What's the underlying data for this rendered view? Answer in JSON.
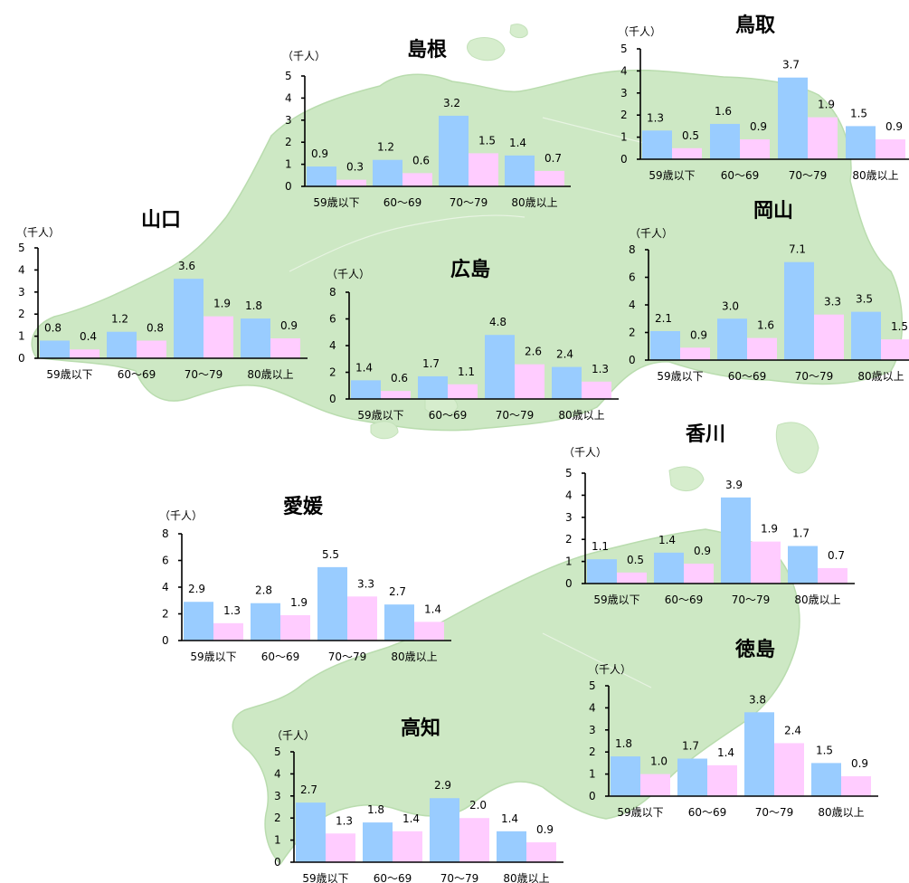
{
  "colors": {
    "series1": "#99ccff",
    "series2": "#ffccff",
    "land": "#cde8c4"
  },
  "chart_data": [
    {
      "type": "bar",
      "title": "鳥取",
      "unit": "（千人）",
      "categories": [
        "59歳以下",
        "60～69",
        "70～79",
        "80歳以上"
      ],
      "series": [
        {
          "values": [
            1.3,
            1.6,
            3.7,
            1.5
          ]
        },
        {
          "values": [
            0.5,
            0.9,
            1.9,
            0.9
          ]
        }
      ],
      "ylim": [
        0,
        5
      ],
      "yticks": [
        "0",
        "1",
        "2",
        "3",
        "4",
        "5"
      ]
    },
    {
      "type": "bar",
      "title": "島根",
      "unit": "（千人）",
      "categories": [
        "59歳以下",
        "60～69",
        "70～79",
        "80歳以上"
      ],
      "series": [
        {
          "values": [
            0.9,
            1.2,
            3.2,
            1.4
          ]
        },
        {
          "values": [
            0.3,
            0.6,
            1.5,
            0.7
          ]
        }
      ],
      "ylim": [
        0,
        5
      ],
      "yticks": [
        "0",
        "1",
        "2",
        "3",
        "4",
        "5"
      ]
    },
    {
      "type": "bar",
      "title": "岡山",
      "unit": "（千人）",
      "categories": [
        "59歳以下",
        "60～69",
        "70～79",
        "80歳以上"
      ],
      "series": [
        {
          "values": [
            2.1,
            3.0,
            7.1,
            3.5
          ]
        },
        {
          "values": [
            0.9,
            1.6,
            3.3,
            1.5
          ]
        }
      ],
      "ylim": [
        0,
        8
      ],
      "yticks": [
        "0",
        "2",
        "4",
        "6",
        "8"
      ]
    },
    {
      "type": "bar",
      "title": "広島",
      "unit": "（千人）",
      "categories": [
        "59歳以下",
        "60～69",
        "70～79",
        "80歳以上"
      ],
      "series": [
        {
          "values": [
            1.4,
            1.7,
            4.8,
            2.4
          ]
        },
        {
          "values": [
            0.6,
            1.1,
            2.6,
            1.3
          ]
        }
      ],
      "ylim": [
        0,
        8
      ],
      "yticks": [
        "0",
        "2",
        "4",
        "6",
        "8"
      ]
    },
    {
      "type": "bar",
      "title": "山口",
      "unit": "（千人）",
      "categories": [
        "59歳以下",
        "60～69",
        "70～79",
        "80歳以上"
      ],
      "series": [
        {
          "values": [
            0.8,
            1.2,
            3.6,
            1.8
          ]
        },
        {
          "values": [
            0.4,
            0.8,
            1.9,
            0.9
          ]
        }
      ],
      "ylim": [
        0,
        5
      ],
      "yticks": [
        "0",
        "1",
        "2",
        "3",
        "4",
        "5"
      ]
    },
    {
      "type": "bar",
      "title": "香川",
      "unit": "（千人）",
      "categories": [
        "59歳以下",
        "60～69",
        "70～79",
        "80歳以上"
      ],
      "series": [
        {
          "values": [
            1.1,
            1.4,
            3.9,
            1.7
          ]
        },
        {
          "values": [
            0.5,
            0.9,
            1.9,
            0.7
          ]
        }
      ],
      "ylim": [
        0,
        5
      ],
      "yticks": [
        "0",
        "1",
        "2",
        "3",
        "4",
        "5"
      ]
    },
    {
      "type": "bar",
      "title": "愛媛",
      "unit": "（千人）",
      "categories": [
        "59歳以下",
        "60～69",
        "70～79",
        "80歳以上"
      ],
      "series": [
        {
          "values": [
            2.9,
            2.8,
            5.5,
            2.7
          ]
        },
        {
          "values": [
            1.3,
            1.9,
            3.3,
            1.4
          ]
        }
      ],
      "ylim": [
        0,
        8
      ],
      "yticks": [
        "0",
        "2",
        "4",
        "6",
        "8"
      ]
    },
    {
      "type": "bar",
      "title": "徳島",
      "unit": "（千人）",
      "categories": [
        "59歳以下",
        "60～69",
        "70～79",
        "80歳以上"
      ],
      "series": [
        {
          "values": [
            1.8,
            1.7,
            3.8,
            1.5
          ]
        },
        {
          "values": [
            1.0,
            1.4,
            2.4,
            0.9
          ]
        }
      ],
      "ylim": [
        0,
        5
      ],
      "yticks": [
        "0",
        "1",
        "2",
        "3",
        "4",
        "5"
      ]
    },
    {
      "type": "bar",
      "title": "高知",
      "unit": "（千人）",
      "categories": [
        "59歳以下",
        "60～69",
        "70～79",
        "80歳以上"
      ],
      "series": [
        {
          "values": [
            2.7,
            1.8,
            2.9,
            1.4
          ]
        },
        {
          "values": [
            1.3,
            1.4,
            2.0,
            0.9
          ]
        }
      ],
      "ylim": [
        0,
        5
      ],
      "yticks": [
        "0",
        "1",
        "2",
        "3",
        "4",
        "5"
      ]
    }
  ]
}
